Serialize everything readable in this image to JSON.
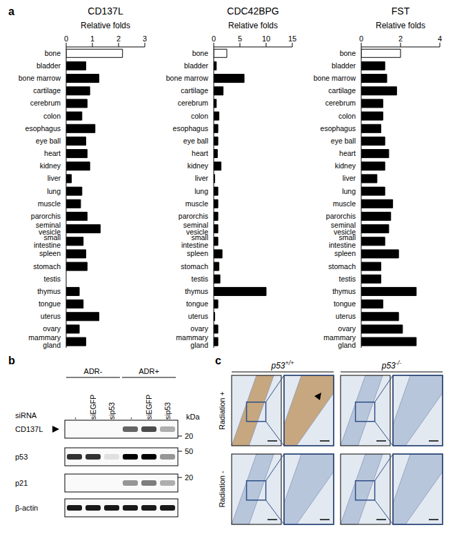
{
  "chart_data": [
    {
      "type": "bar",
      "orientation": "horizontal",
      "title": "CD137L",
      "xlabel": "Relative folds",
      "categories": [
        "bone",
        "bladder",
        "bone marrow",
        "cartilage",
        "cerebrum",
        "colon",
        "esophagus",
        "eye ball",
        "heart",
        "kidney",
        "liver",
        "lung",
        "muscle",
        "parorchis",
        "seminal vesicle",
        "small intestine",
        "spleen",
        "stomach",
        "testis",
        "thymus",
        "tongue",
        "uterus",
        "ovary",
        "mammary gland"
      ],
      "values": [
        2.15,
        0.75,
        1.25,
        0.9,
        0.8,
        0.6,
        1.1,
        0.75,
        0.8,
        0.9,
        0.2,
        0.6,
        0.55,
        0.8,
        1.3,
        0.65,
        0.75,
        0.8,
        0,
        0.5,
        0.65,
        1.25,
        0.5,
        0.75
      ],
      "colors": [
        "#ffffff",
        "#000000",
        "#000000",
        "#000000",
        "#000000",
        "#000000",
        "#000000",
        "#000000",
        "#000000",
        "#000000",
        "#000000",
        "#000000",
        "#000000",
        "#000000",
        "#000000",
        "#000000",
        "#000000",
        "#000000",
        "#000000",
        "#000000",
        "#000000",
        "#000000",
        "#000000",
        "#000000"
      ],
      "xlim": [
        0,
        3
      ],
      "xticks": [
        0,
        1,
        2,
        3
      ]
    },
    {
      "type": "bar",
      "orientation": "horizontal",
      "title": "CDC42BPG",
      "xlabel": "Relative folds",
      "categories": [
        "bone",
        "bladder",
        "bone marrow",
        "cartilage",
        "cerebrum",
        "colon",
        "esophagus",
        "eye ball",
        "heart",
        "kidney",
        "liver",
        "lung",
        "muscle",
        "parorchis",
        "seminal vesicle",
        "small intestine",
        "spleen",
        "stomach",
        "testis",
        "thymus",
        "tongue",
        "uterus",
        "ovary",
        "mammary gland"
      ],
      "values": [
        2.5,
        0.5,
        5.8,
        1.8,
        0.5,
        1.0,
        0.8,
        0.8,
        0.7,
        1.4,
        0.2,
        0.8,
        0.8,
        0.8,
        0.8,
        0.8,
        1.6,
        1.0,
        1.2,
        10,
        0.8,
        0.2,
        0.8,
        0.8
      ],
      "colors": [
        "#ffffff",
        "#000000",
        "#000000",
        "#000000",
        "#000000",
        "#000000",
        "#000000",
        "#000000",
        "#000000",
        "#000000",
        "#000000",
        "#000000",
        "#000000",
        "#000000",
        "#000000",
        "#000000",
        "#000000",
        "#000000",
        "#000000",
        "#000000",
        "#000000",
        "#000000",
        "#000000",
        "#000000"
      ],
      "xlim": [
        0,
        15
      ],
      "xticks": [
        0,
        5,
        10,
        15
      ]
    },
    {
      "type": "bar",
      "orientation": "horizontal",
      "title": "FST",
      "xlabel": "Relative folds",
      "categories": [
        "bone",
        "bladder",
        "bone marrow",
        "cartilage",
        "cerebrum",
        "colon",
        "esophagus",
        "eye ball",
        "heart",
        "kidney",
        "liver",
        "lung",
        "muscle",
        "parorchis",
        "seminal vesicle",
        "small intestine",
        "spleen",
        "stomach",
        "testis",
        "thymus",
        "tongue",
        "uterus",
        "ovary",
        "mammary gland"
      ],
      "values": [
        2.0,
        1.2,
        1.3,
        1.8,
        1.1,
        1.1,
        1.0,
        1.2,
        1.4,
        1.2,
        0.8,
        1.2,
        1.6,
        1.5,
        1.4,
        1.2,
        1.9,
        1.0,
        1.0,
        2.8,
        1.1,
        1.9,
        2.1,
        2.8
      ],
      "colors": [
        "#ffffff",
        "#000000",
        "#000000",
        "#000000",
        "#000000",
        "#000000",
        "#000000",
        "#000000",
        "#000000",
        "#000000",
        "#000000",
        "#000000",
        "#000000",
        "#000000",
        "#000000",
        "#000000",
        "#000000",
        "#000000",
        "#000000",
        "#000000",
        "#000000",
        "#000000",
        "#000000",
        "#000000"
      ],
      "xlim": [
        0,
        4
      ],
      "xticks": [
        0,
        2,
        4
      ]
    }
  ],
  "panels": {
    "a": {
      "label": "a"
    },
    "b": {
      "label": "b",
      "groups": [
        "ADR-",
        "ADR+"
      ],
      "row_header": "siRNA",
      "lanes": [
        "-",
        "siEGFP",
        "sip53",
        "-",
        "siEGFP",
        "sip53"
      ],
      "unit": "kDa",
      "blots": [
        {
          "name": "CD137L",
          "marker": 20,
          "intensities": [
            0,
            0,
            0,
            0.6,
            0.7,
            0.3
          ]
        },
        {
          "name": "p53",
          "marker": 50,
          "intensities": [
            0.8,
            0.8,
            0.1,
            1,
            1,
            0.4
          ]
        },
        {
          "name": "p21",
          "marker": 20,
          "intensities": [
            0,
            0,
            0,
            0.4,
            0.5,
            0.3
          ]
        },
        {
          "name": "β-actin",
          "intensities": [
            0.9,
            0.9,
            0.9,
            0.9,
            0.9,
            0.9
          ]
        }
      ]
    },
    "c": {
      "label": "c",
      "columns": [
        {
          "text": "p53",
          "sup": "+/+"
        },
        {
          "text": "p53",
          "sup": "-/-"
        }
      ],
      "rows": [
        "Radiation +",
        "Radiation -"
      ]
    }
  }
}
